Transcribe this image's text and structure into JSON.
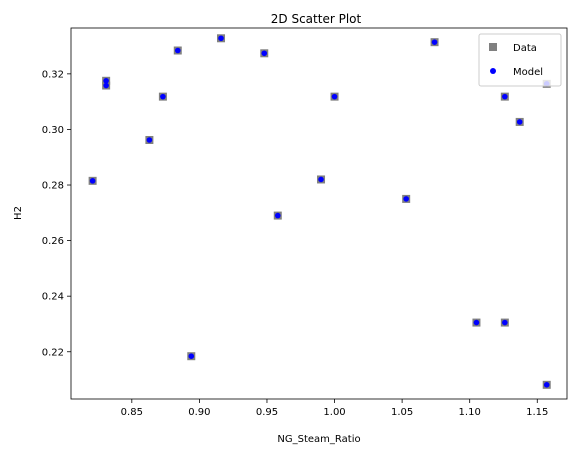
{
  "chart_data": {
    "type": "scatter",
    "title": "2D Scatter Plot",
    "xlabel": "NG_Steam_Ratio",
    "ylabel": "H2",
    "xlim": [
      0.805,
      1.172
    ],
    "ylim": [
      0.203,
      0.3365
    ],
    "x_ticks": [
      0.85,
      0.9,
      0.95,
      1.0,
      1.05,
      1.1,
      1.15
    ],
    "x_tick_labels": [
      "0.85",
      "0.90",
      "0.95",
      "1.00",
      "1.05",
      "1.10",
      "1.15"
    ],
    "y_ticks": [
      0.22,
      0.24,
      0.26,
      0.28,
      0.3,
      0.32
    ],
    "y_tick_labels": [
      "0.22",
      "0.24",
      "0.26",
      "0.28",
      "0.30",
      "0.32"
    ],
    "grid": false,
    "legend_position": "top-right",
    "series": [
      {
        "name": "Data",
        "marker": "square",
        "color": "#808080",
        "points": [
          [
            0.821,
            0.2815
          ],
          [
            0.831,
            0.3175
          ],
          [
            0.831,
            0.3158
          ],
          [
            0.863,
            0.2962
          ],
          [
            0.873,
            0.3118
          ],
          [
            0.884,
            0.3284
          ],
          [
            0.894,
            0.2184
          ],
          [
            0.916,
            0.3328
          ],
          [
            0.948,
            0.3274
          ],
          [
            0.958,
            0.269
          ],
          [
            0.99,
            0.282
          ],
          [
            1.0,
            0.3118
          ],
          [
            1.053,
            0.275
          ],
          [
            1.074,
            0.3314
          ],
          [
            1.105,
            0.2305
          ],
          [
            1.126,
            0.2305
          ],
          [
            1.126,
            0.3118
          ],
          [
            1.137,
            0.3027
          ],
          [
            1.157,
            0.3164
          ],
          [
            1.157,
            0.2081
          ]
        ]
      },
      {
        "name": "Model",
        "marker": "circle",
        "color": "#0000ff",
        "points": [
          [
            0.821,
            0.2815
          ],
          [
            0.831,
            0.3175
          ],
          [
            0.831,
            0.3158
          ],
          [
            0.863,
            0.2962
          ],
          [
            0.873,
            0.3118
          ],
          [
            0.884,
            0.3284
          ],
          [
            0.894,
            0.2184
          ],
          [
            0.916,
            0.3328
          ],
          [
            0.948,
            0.3274
          ],
          [
            0.958,
            0.269
          ],
          [
            0.99,
            0.282
          ],
          [
            1.0,
            0.3118
          ],
          [
            1.053,
            0.275
          ],
          [
            1.074,
            0.3314
          ],
          [
            1.105,
            0.2305
          ],
          [
            1.126,
            0.2305
          ],
          [
            1.126,
            0.3118
          ],
          [
            1.137,
            0.3027
          ],
          [
            1.157,
            0.3164
          ],
          [
            1.157,
            0.2081
          ]
        ]
      }
    ]
  }
}
